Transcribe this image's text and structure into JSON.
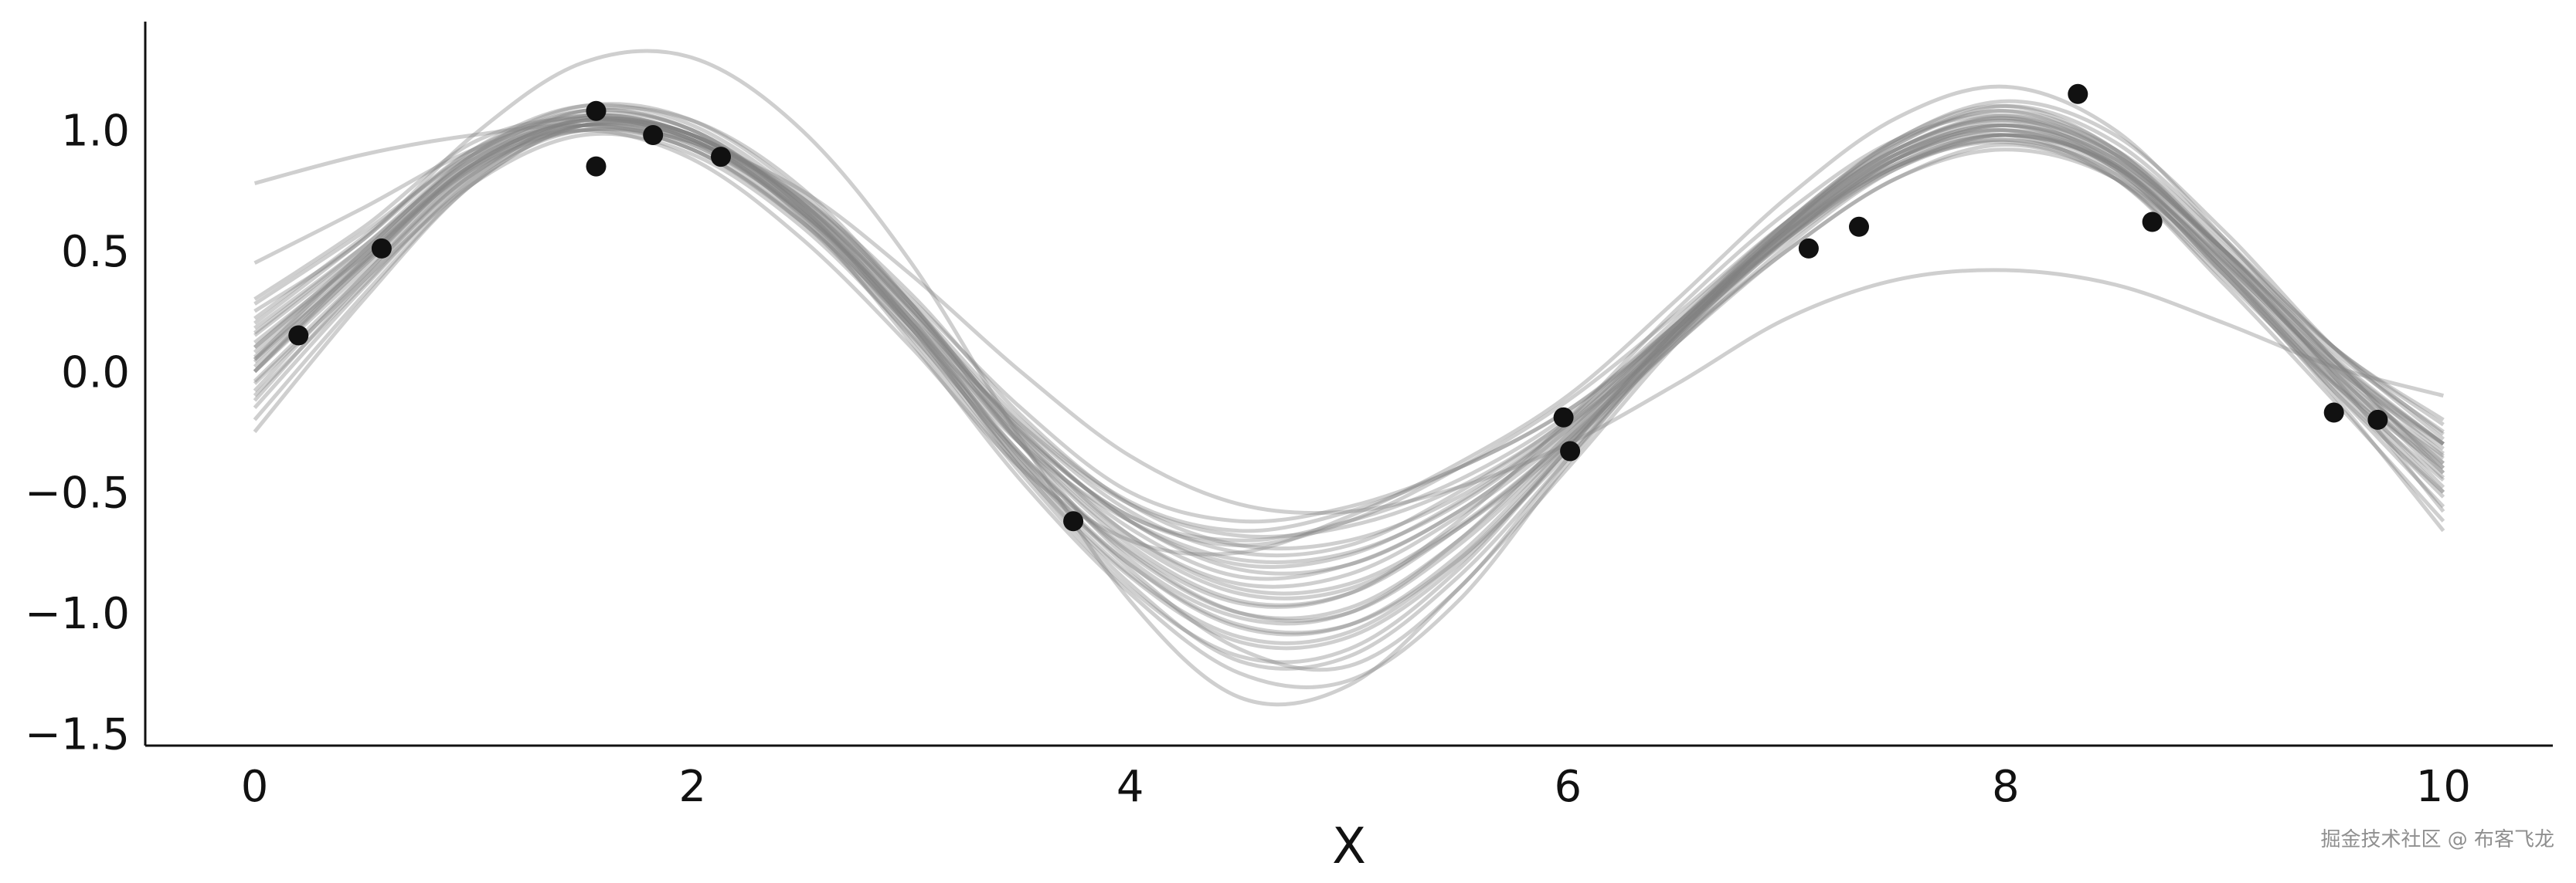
{
  "chart_data": {
    "type": "line",
    "title": "",
    "xlabel": "X",
    "ylabel": "",
    "xlim": [
      -0.5,
      10.5
    ],
    "ylim": [
      -1.55,
      1.45
    ],
    "xticks": [
      0,
      2,
      4,
      6,
      8,
      10
    ],
    "yticks": [
      -1.5,
      -1.0,
      -0.5,
      0.0,
      0.5,
      1.0
    ],
    "ytick_labels": [
      "−1.5",
      "−1.0",
      "−0.5",
      "0.0",
      "0.5",
      "1.0"
    ],
    "xtick_labels": [
      "0",
      "2",
      "4",
      "6",
      "8",
      "10"
    ],
    "grid": false,
    "legend": "none",
    "sample_color": "#808080",
    "point_color": "#111111",
    "observations": {
      "x": [
        0.2,
        0.58,
        1.56,
        1.56,
        1.82,
        2.13,
        3.74,
        5.98,
        6.01,
        7.1,
        7.33,
        8.33,
        8.67,
        9.5,
        9.7
      ],
      "y": [
        0.15,
        0.51,
        1.08,
        0.85,
        0.98,
        0.89,
        -0.62,
        -0.19,
        -0.33,
        0.51,
        0.6,
        1.15,
        0.62,
        -0.17,
        -0.2
      ]
    },
    "samples": {
      "x": [
        0,
        0.5,
        1,
        1.5,
        2,
        2.5,
        3,
        3.5,
        4,
        4.5,
        5,
        5.5,
        6,
        6.5,
        7,
        7.5,
        8,
        8.5,
        9,
        9.5,
        10
      ],
      "series": [
        {
          "y": [
            0.05,
            0.45,
            0.85,
            1.0,
            0.92,
            0.62,
            0.18,
            -0.3,
            -0.62,
            -0.78,
            -0.75,
            -0.55,
            -0.22,
            0.2,
            0.58,
            0.85,
            0.95,
            0.8,
            0.38,
            -0.05,
            -0.4
          ]
        },
        {
          "y": [
            0.0,
            0.42,
            0.82,
            1.02,
            0.95,
            0.65,
            0.2,
            -0.28,
            -0.65,
            -0.85,
            -0.8,
            -0.58,
            -0.24,
            0.18,
            0.56,
            0.86,
            0.98,
            0.85,
            0.45,
            0.0,
            -0.35
          ]
        },
        {
          "y": [
            0.1,
            0.5,
            0.9,
            1.08,
            1.0,
            0.7,
            0.25,
            -0.3,
            -0.72,
            -0.95,
            -0.92,
            -0.65,
            -0.28,
            0.16,
            0.6,
            0.92,
            1.05,
            0.88,
            0.5,
            0.05,
            -0.3
          ]
        },
        {
          "y": [
            -0.05,
            0.38,
            0.78,
            0.98,
            0.9,
            0.6,
            0.15,
            -0.35,
            -0.75,
            -1.0,
            -1.0,
            -0.72,
            -0.3,
            0.15,
            0.55,
            0.85,
            0.96,
            0.82,
            0.42,
            -0.05,
            -0.45
          ]
        },
        {
          "y": [
            0.2,
            0.55,
            0.92,
            1.1,
            1.02,
            0.72,
            0.28,
            -0.25,
            -0.6,
            -0.7,
            -0.62,
            -0.45,
            -0.18,
            0.22,
            0.62,
            0.94,
            1.1,
            0.95,
            0.55,
            0.1,
            -0.2
          ]
        },
        {
          "y": [
            -0.15,
            0.35,
            0.8,
            1.05,
            0.98,
            0.7,
            0.2,
            -0.4,
            -0.85,
            -1.12,
            -1.1,
            -0.8,
            -0.32,
            0.18,
            0.62,
            0.95,
            1.08,
            0.9,
            0.48,
            0.0,
            -0.42
          ]
        },
        {
          "y": [
            0.3,
            0.6,
            0.95,
            1.05,
            0.96,
            0.66,
            0.22,
            -0.22,
            -0.55,
            -0.68,
            -0.64,
            -0.48,
            -0.2,
            0.2,
            0.58,
            0.88,
            1.0,
            0.86,
            0.46,
            0.02,
            -0.3
          ]
        },
        {
          "y": [
            0.0,
            0.46,
            0.86,
            1.04,
            0.97,
            0.68,
            0.22,
            -0.36,
            -0.82,
            -1.15,
            -1.22,
            -0.9,
            -0.36,
            0.16,
            0.58,
            0.9,
            1.0,
            0.84,
            0.4,
            -0.08,
            -0.5
          ]
        },
        {
          "y": [
            0.12,
            0.48,
            0.84,
            1.0,
            0.95,
            0.72,
            0.32,
            -0.18,
            -0.55,
            -0.72,
            -0.7,
            -0.52,
            -0.22,
            0.14,
            0.5,
            0.8,
            0.92,
            0.8,
            0.44,
            0.02,
            -0.32
          ]
        },
        {
          "y": [
            -0.25,
            0.3,
            0.78,
            1.02,
            0.96,
            0.64,
            0.12,
            -0.45,
            -0.92,
            -1.25,
            -1.28,
            -0.95,
            -0.38,
            0.15,
            0.6,
            0.96,
            1.1,
            0.92,
            0.5,
            -0.02,
            -0.58
          ]
        },
        {
          "y": [
            0.45,
            0.68,
            0.92,
            1.05,
            0.98,
            0.72,
            0.3,
            -0.15,
            -0.5,
            -0.62,
            -0.56,
            -0.4,
            -0.16,
            0.18,
            0.55,
            0.85,
            0.98,
            0.86,
            0.5,
            0.08,
            -0.25
          ]
        },
        {
          "y": [
            0.78,
            0.9,
            0.98,
            1.02,
            0.95,
            0.75,
            0.4,
            0.0,
            -0.35,
            -0.55,
            -0.58,
            -0.48,
            -0.3,
            -0.05,
            0.22,
            0.38,
            0.42,
            0.36,
            0.2,
            0.02,
            -0.1
          ]
        },
        {
          "y": [
            0.25,
            0.55,
            0.98,
            1.28,
            1.3,
            1.0,
            0.45,
            -0.28,
            -0.95,
            -1.35,
            -1.3,
            -0.9,
            -0.4,
            0.12,
            0.55,
            0.88,
            1.02,
            0.88,
            0.48,
            0.02,
            -0.38
          ]
        },
        {
          "y": [
            0.05,
            0.5,
            0.88,
            1.0,
            0.88,
            0.55,
            0.1,
            -0.4,
            -0.7,
            -0.75,
            -0.6,
            -0.38,
            -0.1,
            0.3,
            0.72,
            1.05,
            1.18,
            1.0,
            0.55,
            0.05,
            -0.4
          ]
        },
        {
          "y": [
            -0.08,
            0.4,
            0.84,
            1.06,
            1.0,
            0.68,
            0.18,
            -0.38,
            -0.8,
            -1.05,
            -1.05,
            -0.78,
            -0.34,
            0.14,
            0.56,
            0.88,
            1.02,
            0.88,
            0.5,
            0.06,
            -0.3
          ]
        },
        {
          "y": [
            0.18,
            0.52,
            0.88,
            1.04,
            0.96,
            0.68,
            0.26,
            -0.22,
            -0.58,
            -0.75,
            -0.72,
            -0.5,
            -0.2,
            0.2,
            0.6,
            0.9,
            1.02,
            0.85,
            0.42,
            -0.06,
            -0.52
          ]
        },
        {
          "y": [
            0.02,
            0.44,
            0.86,
            1.08,
            1.04,
            0.76,
            0.28,
            -0.3,
            -0.78,
            -1.02,
            -1.0,
            -0.7,
            -0.26,
            0.2,
            0.62,
            0.96,
            1.12,
            0.98,
            0.58,
            0.1,
            -0.28
          ]
        },
        {
          "y": [
            -0.1,
            0.36,
            0.8,
            1.0,
            0.92,
            0.62,
            0.14,
            -0.42,
            -0.9,
            -1.18,
            -1.15,
            -0.82,
            -0.32,
            0.18,
            0.58,
            0.88,
            0.98,
            0.8,
            0.36,
            -0.12,
            -0.62
          ]
        },
        {
          "y": [
            0.28,
            0.58,
            0.9,
            1.02,
            0.92,
            0.62,
            0.2,
            -0.26,
            -0.6,
            -0.72,
            -0.62,
            -0.4,
            -0.12,
            0.24,
            0.62,
            0.92,
            1.05,
            0.9,
            0.52,
            0.1,
            -0.22
          ]
        },
        {
          "y": [
            0.08,
            0.48,
            0.9,
            1.1,
            1.04,
            0.74,
            0.28,
            -0.26,
            -0.68,
            -0.9,
            -0.88,
            -0.64,
            -0.28,
            0.12,
            0.5,
            0.8,
            0.94,
            0.8,
            0.4,
            -0.04,
            -0.38
          ]
        },
        {
          "y": [
            -0.2,
            0.32,
            0.78,
            1.02,
            0.98,
            0.66,
            0.16,
            -0.4,
            -0.88,
            -1.2,
            -1.18,
            -0.85,
            -0.36,
            0.14,
            0.6,
            0.94,
            1.08,
            0.92,
            0.48,
            -0.02,
            -0.48
          ]
        },
        {
          "y": [
            0.15,
            0.5,
            0.86,
            1.02,
            0.94,
            0.66,
            0.24,
            -0.24,
            -0.62,
            -0.82,
            -0.8,
            -0.58,
            -0.24,
            0.16,
            0.54,
            0.84,
            0.96,
            0.82,
            0.42,
            -0.02,
            -0.36
          ]
        },
        {
          "y": [
            0.0,
            0.44,
            0.84,
            1.02,
            0.94,
            0.64,
            0.18,
            -0.34,
            -0.74,
            -0.96,
            -0.92,
            -0.62,
            -0.2,
            0.26,
            0.66,
            0.96,
            1.06,
            0.9,
            0.5,
            0.04,
            -0.34
          ]
        },
        {
          "y": [
            0.22,
            0.56,
            0.92,
            1.06,
            0.98,
            0.7,
            0.28,
            -0.2,
            -0.54,
            -0.66,
            -0.58,
            -0.4,
            -0.16,
            0.2,
            0.6,
            0.92,
            1.06,
            0.92,
            0.54,
            0.1,
            -0.26
          ]
        },
        {
          "y": [
            -0.04,
            0.4,
            0.82,
            1.02,
            0.96,
            0.66,
            0.2,
            -0.34,
            -0.76,
            -1.0,
            -0.98,
            -0.7,
            -0.28,
            0.18,
            0.58,
            0.9,
            1.04,
            0.9,
            0.5,
            0.05,
            -0.42
          ]
        },
        {
          "y": [
            0.1,
            0.48,
            0.86,
            1.04,
            0.96,
            0.66,
            0.22,
            -0.3,
            -0.7,
            -0.92,
            -0.9,
            -0.65,
            -0.3,
            0.12,
            0.52,
            0.84,
            0.98,
            0.85,
            0.46,
            0.0,
            -0.44
          ]
        },
        {
          "y": [
            0.04,
            0.46,
            0.88,
            1.08,
            1.0,
            0.68,
            0.2,
            -0.36,
            -0.8,
            -1.06,
            -1.05,
            -0.76,
            -0.3,
            0.18,
            0.6,
            0.92,
            1.04,
            0.86,
            0.42,
            -0.08,
            -0.56
          ]
        },
        {
          "y": [
            0.16,
            0.52,
            0.9,
            1.06,
            0.98,
            0.7,
            0.26,
            -0.24,
            -0.62,
            -0.8,
            -0.76,
            -0.54,
            -0.22,
            0.18,
            0.56,
            0.86,
            0.98,
            0.84,
            0.46,
            0.04,
            -0.3
          ]
        },
        {
          "y": [
            -0.12,
            0.38,
            0.82,
            1.04,
            0.98,
            0.68,
            0.18,
            -0.38,
            -0.84,
            -1.1,
            -1.08,
            -0.78,
            -0.32,
            0.16,
            0.58,
            0.9,
            1.02,
            0.86,
            0.44,
            -0.04,
            -0.5
          ]
        },
        {
          "y": [
            0.06,
            0.46,
            0.86,
            1.04,
            0.98,
            0.7,
            0.26,
            -0.28,
            -0.68,
            -0.88,
            -0.84,
            -0.6,
            -0.26,
            0.16,
            0.56,
            0.88,
            1.0,
            0.84,
            0.4,
            -0.1,
            -0.66
          ]
        }
      ]
    }
  },
  "watermark": "掘金技术社区 @ 布客飞龙"
}
